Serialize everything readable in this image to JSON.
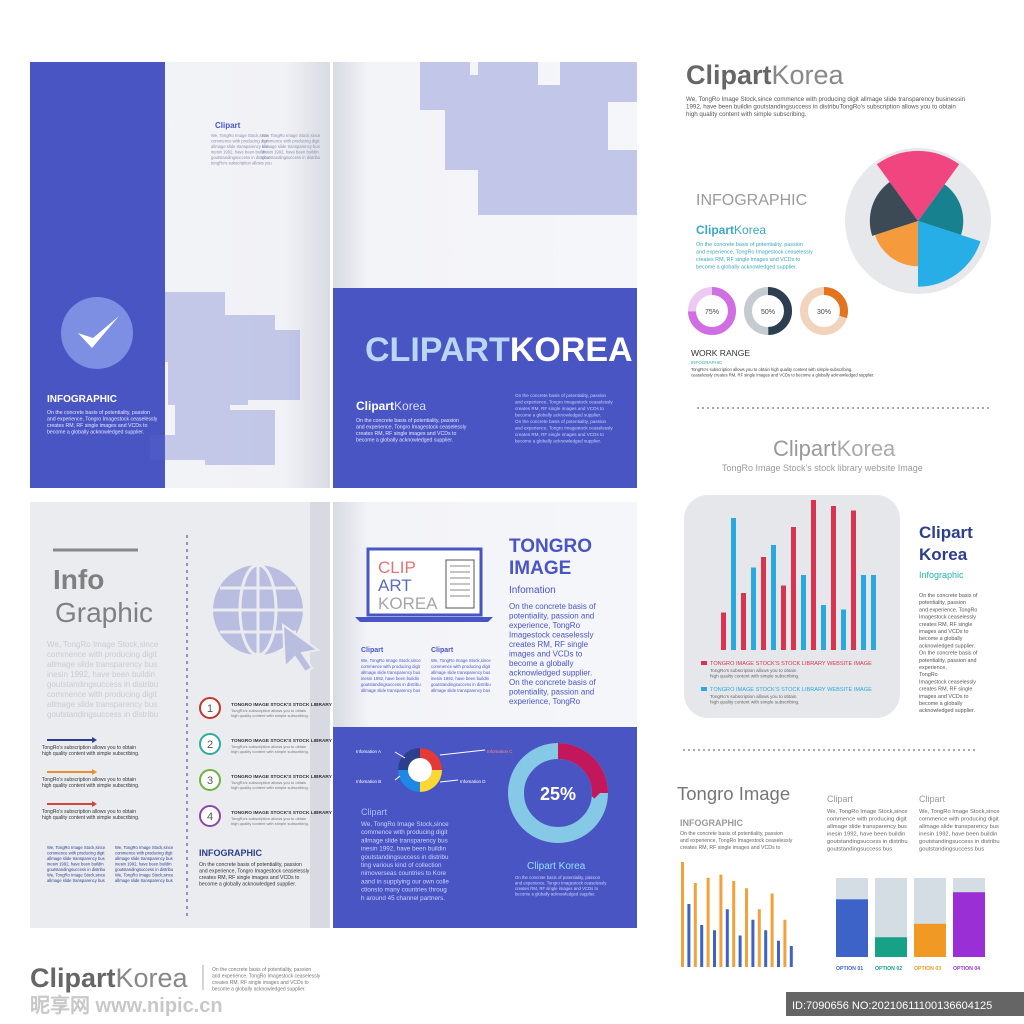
{
  "top_spread": {
    "left": {
      "heading": "Clipart",
      "col1": [
        "We, TongRo Image Stock,since",
        "commence with producing digit",
        "allmage slide transparency bus",
        "inesin 1992, have been buildin",
        "goutstandingsuccess in distribu",
        "tongRo's subscription allows you"
      ],
      "col2": [
        "We, TongRo Image Stock,since",
        "commence with producing digit",
        "allmage slide transparency bus",
        "inesin 1992, have been buildin",
        "goutstandingsuccess in distribu"
      ],
      "label": "INFOGRAPHIC",
      "body": [
        "On the concrete basis of potentiality, passion",
        "and experience, Tongro Imagestock ceaselessly",
        "creates RM, RF single images and VCDs to",
        "become a globally acknowledged supplier."
      ]
    },
    "right": {
      "title": [
        "CLIPART",
        "KOREA"
      ],
      "brand": [
        "Clipart",
        "Korea"
      ],
      "body": [
        "On the concrete basis of potentiality, passion",
        "and experience, Tongro Imagestock ceaselessly",
        "creates RM, RF single images and VCDs to",
        "become a globally acknowledged supplier."
      ],
      "side": [
        "On the concrete basis of potentiality, passion",
        "and experience, Tongro Imagestock ceaselessly",
        "creates RM, RF single images and VCDs to",
        "become a globally acknowledged supplier.",
        "On the concrete basis of potentiality, passion",
        "and experience, Tongro Imagestock ceaselessly",
        "creates RM, RF single images and VCDs to",
        "become a globally acknowledged supplier."
      ]
    }
  },
  "bottom_spread": {
    "left": {
      "title": [
        "Info",
        "Graphic"
      ],
      "intro": [
        "We, TongRo Image Stock,since",
        "commence with producing digit",
        "allmage slide transparency bus",
        "inesin 1992, have been buildin",
        "goutstandingsuccess in distribu",
        "commence with producing digit",
        "allmage slide transparency bus",
        "goutstandingsuccess in distribu"
      ],
      "arrows": [
        [
          "TongRo's subscription allows you to obtain",
          "high quality content with simple subscribing."
        ],
        [
          "TongRo's subscription allows you to obtain",
          "high quality content with simple subscribing."
        ],
        [
          "TongRo's subscription allows you to obtain",
          "high quality content with simple subscribing."
        ]
      ],
      "columns": [
        [
          "We, TongRo Image Stock,since",
          "commence with producing digit",
          "allmage slide transparency bus",
          "inesin 1992, have been buildin",
          "goutstandingsuccess in distribu",
          "We, TongRo Image Stock,since",
          "allmage slide transparency bus"
        ],
        [
          "We, TongRo Image Stock,since",
          "commence with producing digit",
          "allmage slide transparency bus",
          "inesin 1992, have been buildin",
          "goutstandingsuccess in distribu",
          "We, TongRo Image Stock,since",
          "allmage slide transparency bus"
        ]
      ],
      "steps": [
        {
          "number": 1,
          "label": "TONGRO IMAGE STOCK'S STOCK LIBRARY",
          "text": [
            "TongRo's subscription allows you to obtain",
            "high quality content with simple subscribing."
          ]
        },
        {
          "number": 2,
          "label": "TONGRO IMAGE STOCK'S STOCK LIBRARY",
          "text": [
            "TongRo's subscription allows you to obtain",
            "high quality content with simple subscribing."
          ]
        },
        {
          "number": 3,
          "label": "TONGRO IMAGE STOCK'S STOCK LIBRARY",
          "text": [
            "TongRo's subscription allows you to obtain",
            "high quality content with simple subscribing."
          ]
        },
        {
          "number": 4,
          "label": "TONGRO IMAGE STOCK'S STOCK LIBRARY",
          "text": [
            "TongRo's subscription allows you to obtain",
            "high quality content with simple subscribing."
          ]
        }
      ],
      "label": "INFOGRAPHIC",
      "body": [
        "On the concrete basis of potentiality, passion",
        "and experience, Tongro Imagestock ceaselessly",
        "creates RM, RF single images and VCDs to",
        "become a globally acknowledged supplier."
      ]
    },
    "right": {
      "laptop": [
        "CLIP",
        "ART",
        "KOREA"
      ],
      "title": [
        "TONGRO",
        "IMAGE"
      ],
      "subtitle": "Infomation",
      "body": [
        "On the concrete basis of",
        "potentiality, passion  and",
        "experience, TongRo",
        "Imagestock ceaselessly",
        "creates RM, RF single",
        "images and VCDs to",
        "become a globally",
        "acknowledged supplier.",
        "On the concrete basis of",
        "potentiality, passion  and",
        "experience, TongRo"
      ],
      "columns": [
        {
          "heading": "Clipart",
          "text": [
            "We, TongRo Image Stock,since",
            "commence with producing digit",
            "allmage slide transparency bus",
            "inesin 1992, have been buildin",
            "goutstandingsuccess in distribu",
            "allmage slide transparency bus"
          ]
        },
        {
          "heading": "Clipart",
          "text": [
            "We, TongRo Image Stock,since",
            "commence with producing digit",
            "allmage slide transparency bus",
            "inesin 1992, have been buildin",
            "goutstandingsuccess in distribu",
            "allmage slide transparency bus"
          ]
        }
      ],
      "diagram": [
        "Infomation A",
        "Infomation B",
        "Infomation C",
        "Infomation D"
      ],
      "heading": "Clipart",
      "text": [
        "We, TongRo Image Stock,since",
        "commence with producing digit",
        "allmage slide transparency bus",
        "inesin 1992, have been buildin",
        "goutstandingsuccess in distribu",
        "ting various kind of collection",
        "nimoverseas countries to Kore",
        "aand in supplying our own colle",
        "ctionsto many countries throug",
        "h around 45 channel partners."
      ],
      "donut": {
        "value": 25,
        "label": "25%"
      },
      "donut_caption": "Clipart Korea",
      "donut_text": [
        "On the concrete basis of potentiality, passion",
        "and experience, Tongro Imagestock ceaselessly",
        "creates RM, RF single images and VCDs to",
        "become a globally acknowledged supplier."
      ]
    }
  },
  "sidebar": {
    "brand": [
      "Clipart",
      "Korea"
    ],
    "intro": [
      "We, TongRo Image Stock,since commence with producing digit allmage slide transparency businessin",
      "1992, have been buildin goutstandingsuccess in distribuTongRo's subscription allows you to obtain",
      "high quality content with simple subscribing."
    ],
    "infographic": {
      "title": "INFOGRAPHIC",
      "brand": [
        "Clipart",
        "Korea"
      ],
      "text": [
        "On the concrete basis of potentiality, passion",
        "and experience, TongRo Imagestock ceaselessly",
        "creates RM, RF single images and VCDs to",
        "become a globally acknowledged supplier."
      ],
      "pie": [
        {
          "color": "#f0457e",
          "value": 96
        },
        {
          "color": "#17818f",
          "value": 62
        },
        {
          "color": "#27aee6",
          "value": 90
        },
        {
          "color": "#f59a3d",
          "value": 62
        },
        {
          "color": "#3b4a55",
          "value": 66
        }
      ],
      "gauges": [
        {
          "value": 75,
          "label": "75%",
          "color": "#cf6fe3",
          "track": "#ecc9f3"
        },
        {
          "value": 50,
          "label": "50%",
          "color": "#2c3e50",
          "track": "#c5cbd1"
        },
        {
          "value": 30,
          "label": "30%",
          "color": "#e4731f",
          "track": "#f2d4bd"
        }
      ],
      "work_title": "WORK RANGE",
      "work_sub": "INFOGRAPHIC",
      "work_text": [
        "TongRo's subscription allows you to obtain high quality content with simple subscribing.",
        "ceaselessly  creates RM, RF single images and VCDs to  become a globally acknowledged supplier."
      ]
    },
    "library": {
      "brand": [
        "Clipart",
        "Korea"
      ],
      "subtitle": "TongRo Image Stock's stock library website Image",
      "ylim": [
        0,
        100
      ],
      "values": [
        25,
        88,
        38,
        55,
        62,
        70,
        43,
        82,
        50,
        100,
        30,
        96,
        27,
        93,
        50,
        50
      ],
      "colors": [
        "#d9344f",
        "#2aa9de",
        "#d9344f",
        "#2aa9de",
        "#d9344f",
        "#2aa9de",
        "#d9344f",
        "#d9344f",
        "#2aa9de",
        "#d9344f",
        "#2aa9de",
        "#d9344f",
        "#2aa9de",
        "#d9344f",
        "#2aa9de",
        "#2aa9de"
      ],
      "legend": [
        {
          "label": "TONGRO IMAGE STOCK'S STOCK LIBRARY WEBSITE IMAGE",
          "color": "#d9344f",
          "text": [
            "TongRo's subscription allows you to obtain",
            "high quality content with simple subscribing."
          ]
        },
        {
          "label": "TONGRO IMAGE STOCK'S STOCK LIBRARY WEBSITE IMAGE",
          "color": "#2aa9de",
          "text": [
            "TongRo's subscription allows you to obtain",
            "high quality content with simple subscribing."
          ]
        }
      ],
      "side_title": [
        "Clipart",
        "Korea"
      ],
      "side_sub": "Infographic",
      "side_text": [
        "On the concrete basis of",
        "potentiality, passion",
        "and experience, TongRo",
        "Imagestock ceaselessly",
        "creates RM, RF single",
        "images and VCDs to",
        "become a globally",
        "acknowledged supplier.",
        "On the concrete basis of",
        "potentiality, passion and",
        "experience,",
        "TongRo",
        "Imagestock ceaselessly",
        "creates RM, RF single",
        "images and VCDs to",
        "become a globally",
        "acknowledged supplier."
      ]
    },
    "tongro": {
      "title": "Tongro Image",
      "sub": "INFOGRAPHIC",
      "text": [
        "On the concrete basis of potentiality, passion",
        "and experience, TongRo Imagestock ceaselessly",
        "creates RM, RF single images and VCDs to"
      ],
      "columns": [
        {
          "heading": "Clipart",
          "text": [
            "We, TongRo Image Stock,since",
            "commence with producing digit",
            "allmage slide transparency bus",
            "inesin 1992, have been buildin",
            "goutstandingsuccess in distribu",
            "goutstandingsuccess bus"
          ]
        },
        {
          "heading": "Clipart",
          "text": [
            "We, TongRo Image Stock,since",
            "commence with producing digit",
            "allmage slide transparency bus",
            "inesin 1992, have been buildin",
            "goutstandingsuccess in distribu",
            "goutstandingsuccess bus"
          ]
        }
      ],
      "ylim": [
        0,
        100
      ],
      "values": [
        100,
        60,
        80,
        40,
        85,
        35,
        88,
        55,
        82,
        30,
        75,
        45,
        55,
        35,
        70,
        25,
        45,
        20
      ],
      "colors": [
        "#f0a23b",
        "#3d63c9",
        "#f0a23b",
        "#3d63c9",
        "#f0a23b",
        "#3d63c9",
        "#f0a23b",
        "#3d63c9",
        "#f0a23b",
        "#3d63c9",
        "#f0a23b",
        "#3d63c9",
        "#f0a23b",
        "#3d63c9",
        "#f0a23b",
        "#3d63c9",
        "#f0a23b",
        "#3d63c9"
      ],
      "options": [
        {
          "label": "OPTION 01",
          "value": 73,
          "color": "#3d63c9"
        },
        {
          "label": "OPTION 02",
          "value": 25,
          "color": "#17a187"
        },
        {
          "label": "OPTION 03",
          "value": 42,
          "color": "#f09a25"
        },
        {
          "label": "OPTION 04",
          "value": 82,
          "color": "#9b2fd6"
        }
      ]
    }
  },
  "footer": {
    "brand": [
      "Clipart",
      "Korea"
    ],
    "text": [
      "On the concrete basis of potentiality, passion",
      "and experience, TongRo Imagestock ceaselessly",
      "creates RM, RF single images and VCDs to",
      "become a globally acknowledged supplier."
    ]
  },
  "watermark": {
    "site": "昵享网 www.nipic.cn",
    "id": "ID:7090656 NO:20210611100136604125"
  }
}
